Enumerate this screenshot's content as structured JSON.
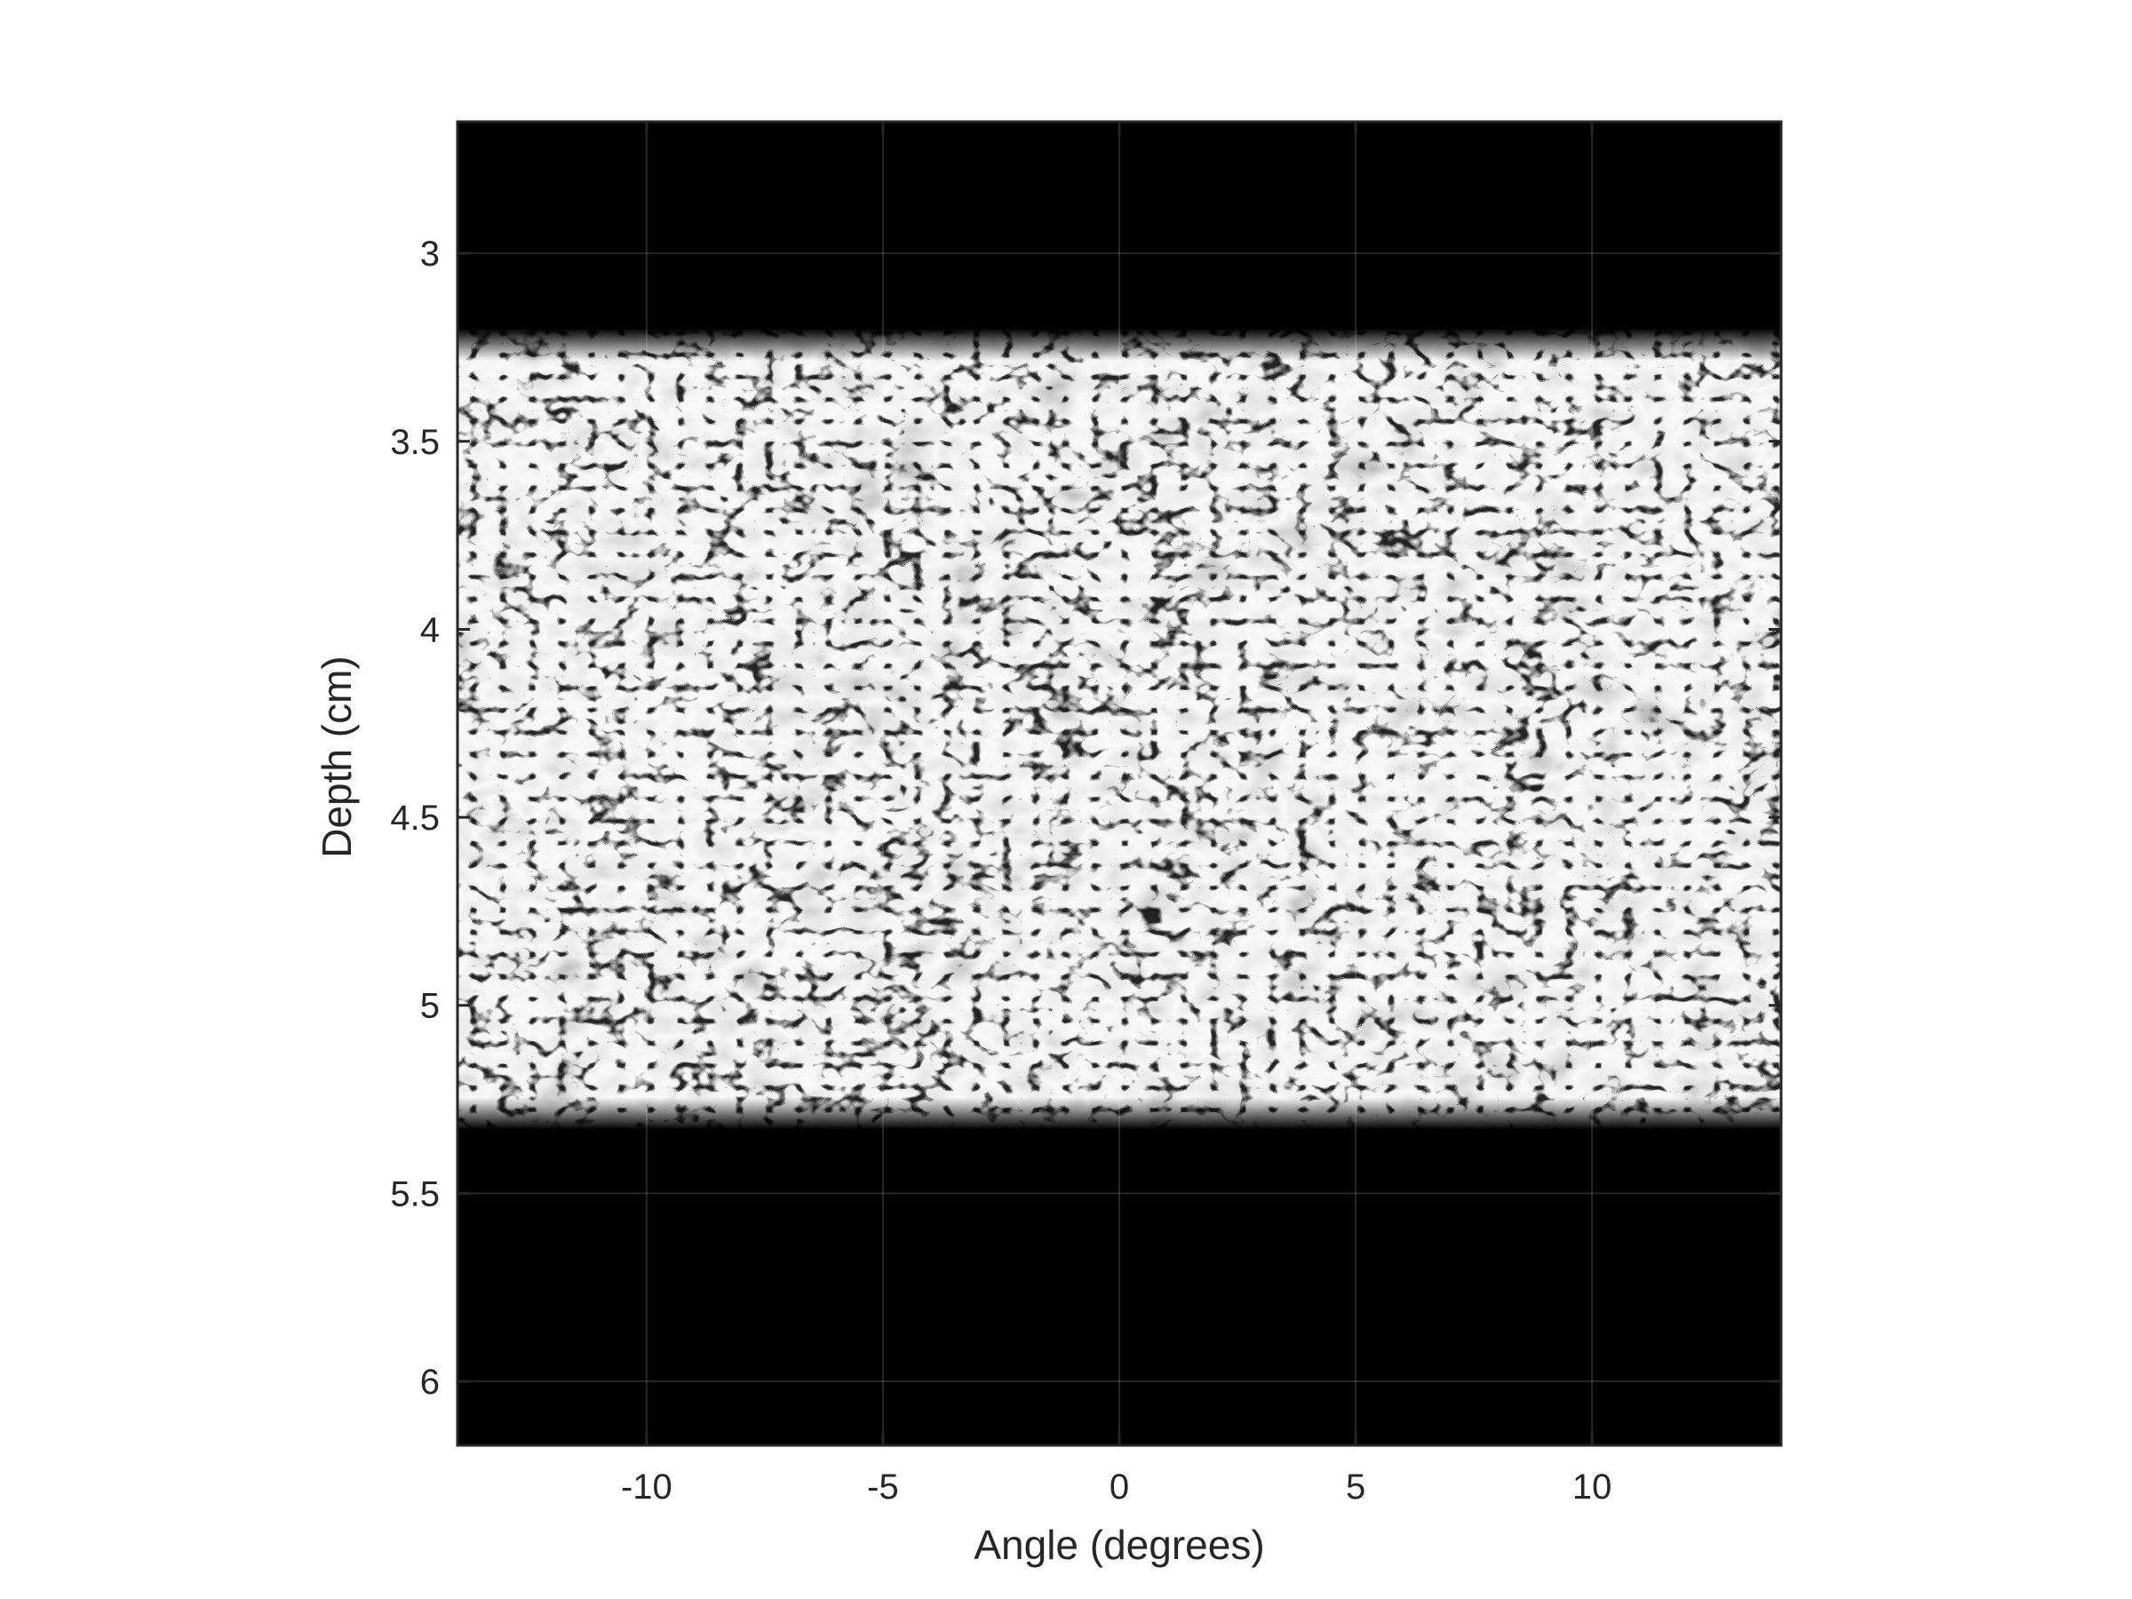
{
  "chart_data": {
    "type": "heatmap",
    "title": "",
    "xlabel": "Angle (degrees)",
    "ylabel": "Depth (cm)",
    "xlim": [
      -14,
      14
    ],
    "ylim": [
      2.65,
      6.17
    ],
    "y_reversed": true,
    "x_ticks": [
      -10,
      -5,
      0,
      5,
      10
    ],
    "x_tick_labels": [
      "-10",
      "-5",
      "0",
      "5",
      "10"
    ],
    "y_ticks": [
      3,
      3.5,
      4,
      4.5,
      5,
      5.5,
      6
    ],
    "y_tick_labels": [
      "3",
      "3.5",
      "4",
      "4.5",
      "5",
      "5.5",
      "6"
    ],
    "grid": true,
    "colormap": "gray",
    "background_color": "#000000",
    "speckle_region": {
      "depth_start": 3.2,
      "depth_end": 5.33,
      "angle_start": -14,
      "angle_end": 14
    },
    "description": "B-mode ultrasound speckle image"
  }
}
